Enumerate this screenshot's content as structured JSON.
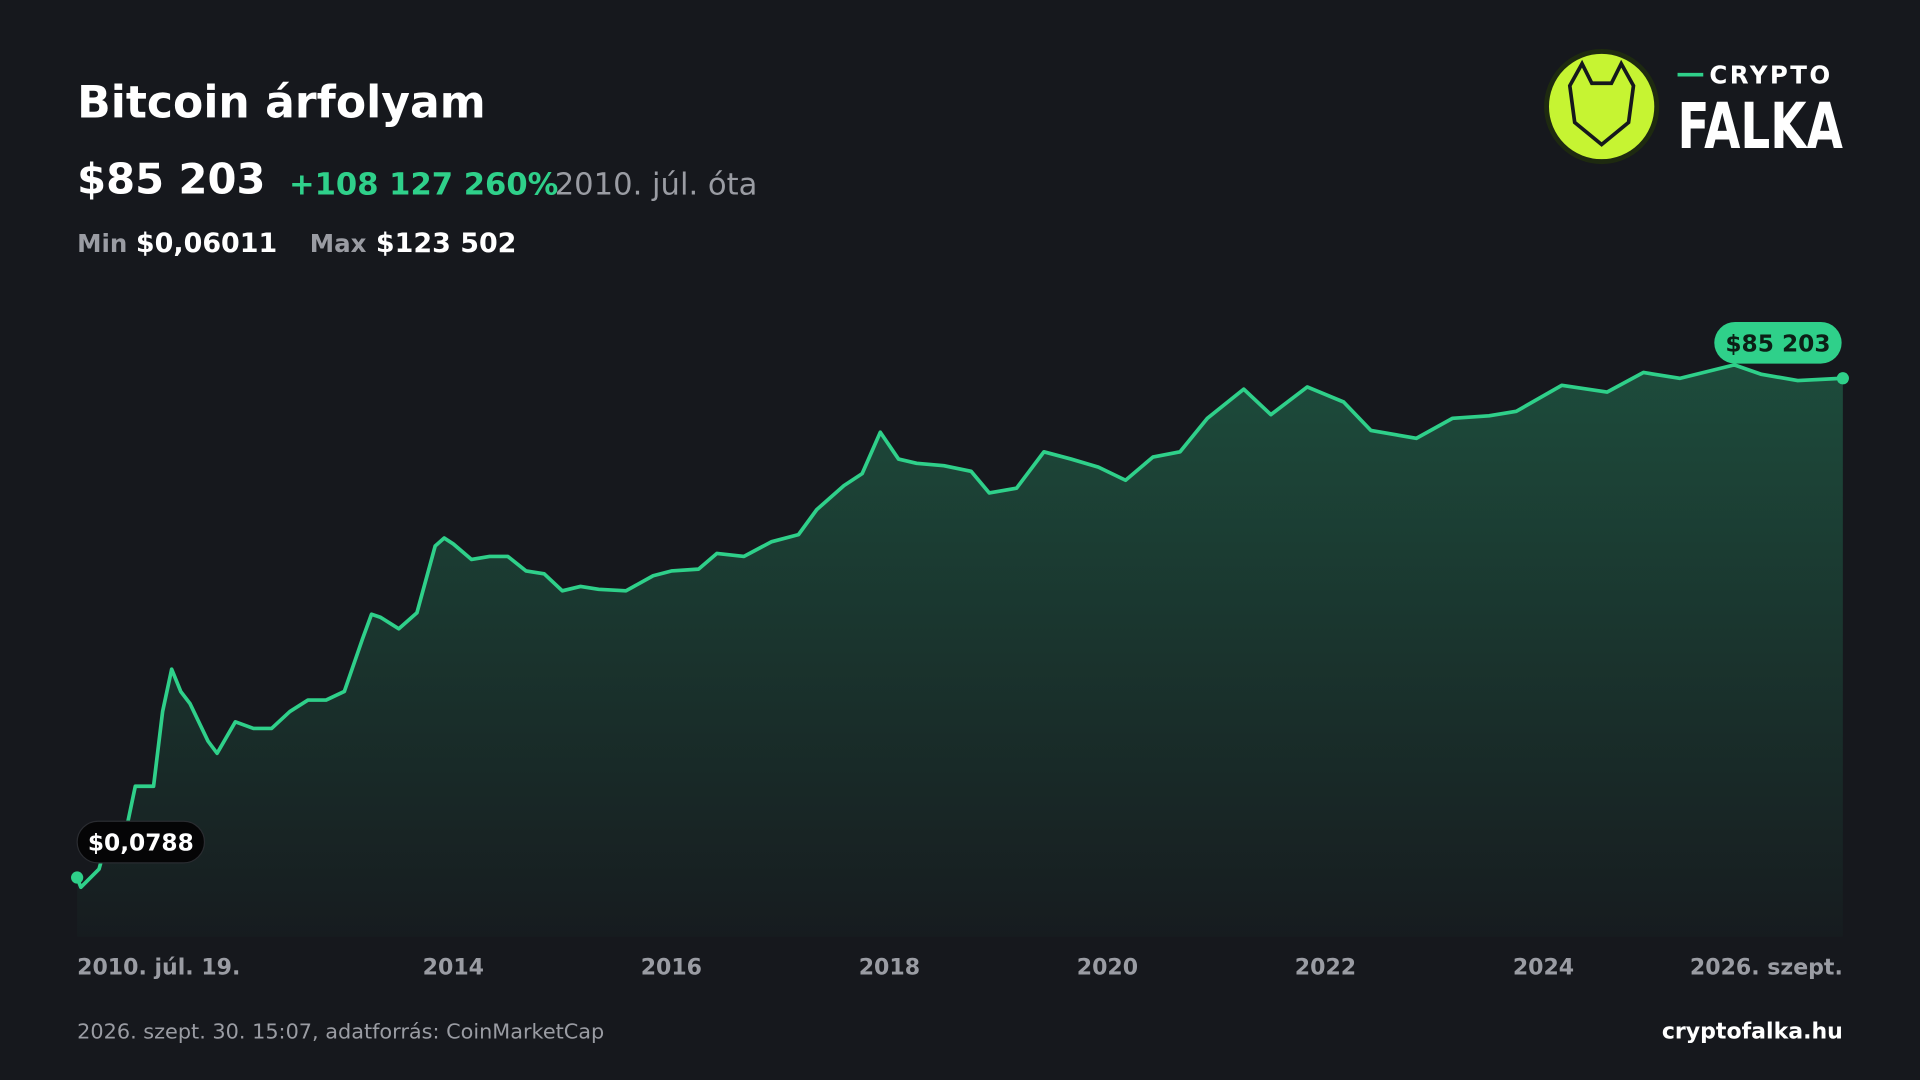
{
  "header": {
    "price": "$85 203",
    "change": "+108 127 260%",
    "since": "2010. júl. óta",
    "min_label": "Min",
    "min_value": "$0,06011",
    "max_label": "Max",
    "max_value": "$123 502"
  },
  "logo": {
    "top": "CRYPTO",
    "bottom": "FALKA"
  },
  "footer": {
    "source": "2026. szept. 30. 15:07, adatforrás: CoinMarketCap",
    "site": "cryptofalka.hu"
  },
  "chart_data": {
    "type": "line",
    "title": "Bitcoin árfolyam",
    "color": "#2fd08a",
    "log_scale": true,
    "grid": false,
    "x": [
      "2010-07-19",
      "2010-08",
      "2010-10",
      "2010-11",
      "2011-01",
      "2011-02",
      "2011-04",
      "2011-05",
      "2011-06",
      "2011-07",
      "2011-08",
      "2011-10",
      "2011-11",
      "2012-01",
      "2012-03",
      "2012-05",
      "2012-07",
      "2012-09",
      "2012-11",
      "2013-01",
      "2013-03",
      "2013-04",
      "2013-05",
      "2013-07",
      "2013-09",
      "2013-11",
      "2013-12",
      "2014-01",
      "2014-03",
      "2014-05",
      "2014-07",
      "2014-09",
      "2014-11",
      "2015-01",
      "2015-03",
      "2015-05",
      "2015-08",
      "2015-11",
      "2016-01",
      "2016-04",
      "2016-06",
      "2016-09",
      "2016-12",
      "2017-03",
      "2017-05",
      "2017-08",
      "2017-10",
      "2017-12",
      "2018-02",
      "2018-04",
      "2018-07",
      "2018-10",
      "2018-12",
      "2019-03",
      "2019-06",
      "2019-09",
      "2019-12",
      "2020-03",
      "2020-06",
      "2020-09",
      "2020-12",
      "2021-04",
      "2021-07",
      "2021-11",
      "2022-03",
      "2022-06",
      "2022-11",
      "2023-03",
      "2023-07",
      "2023-10",
      "2024-03",
      "2024-08",
      "2024-12",
      "2025-04",
      "2025-10",
      "2026-01",
      "2026-05",
      "2026-09-30"
    ],
    "values": [
      0.0788,
      0.06011,
      0.1,
      0.25,
      0.3,
      1,
      1,
      8,
      26,
      14,
      10,
      3.5,
      2.5,
      6,
      5,
      5,
      8,
      11,
      11,
      14,
      60,
      120,
      110,
      80,
      125,
      800,
      1000,
      850,
      550,
      600,
      600,
      400,
      370,
      230,
      260,
      240,
      230,
      350,
      400,
      420,
      650,
      600,
      900,
      1100,
      2200,
      4300,
      6000,
      19000,
      9000,
      8000,
      7500,
      6400,
      3500,
      4000,
      11000,
      9000,
      7200,
      5000,
      9500,
      11000,
      28000,
      63000,
      31000,
      67000,
      44000,
      20000,
      16000,
      28000,
      30000,
      34000,
      70000,
      58000,
      100000,
      85000,
      123502,
      95000,
      80000,
      85203
    ],
    "value_labels": [
      "$0,0788",
      null,
      null,
      null,
      null,
      null,
      null,
      null,
      null,
      null,
      null,
      null,
      null,
      null,
      null,
      null,
      null,
      null,
      null,
      null,
      null,
      null,
      null,
      null,
      null,
      null,
      null,
      null,
      null,
      null,
      null,
      null,
      null,
      null,
      null,
      null,
      null,
      null,
      null,
      null,
      null,
      null,
      null,
      null,
      null,
      null,
      null,
      null,
      null,
      null,
      null,
      null,
      null,
      null,
      null,
      null,
      null,
      null,
      null,
      null,
      null,
      null,
      null,
      null,
      null,
      null,
      null,
      null,
      null,
      null,
      null,
      null,
      null,
      null,
      null,
      null,
      null,
      "$85 203"
    ],
    "xlim": [
      "2010-07-19",
      "2026-09-30"
    ],
    "xticks": [
      {
        "value": "2010-07-19",
        "label": "2010. júl. 19."
      },
      2014,
      2016,
      2018,
      2020,
      2022,
      2024,
      {
        "value": "2026-09-30",
        "label": "2026. szept."
      }
    ],
    "ylim": [
      0.03,
      300000
    ]
  }
}
